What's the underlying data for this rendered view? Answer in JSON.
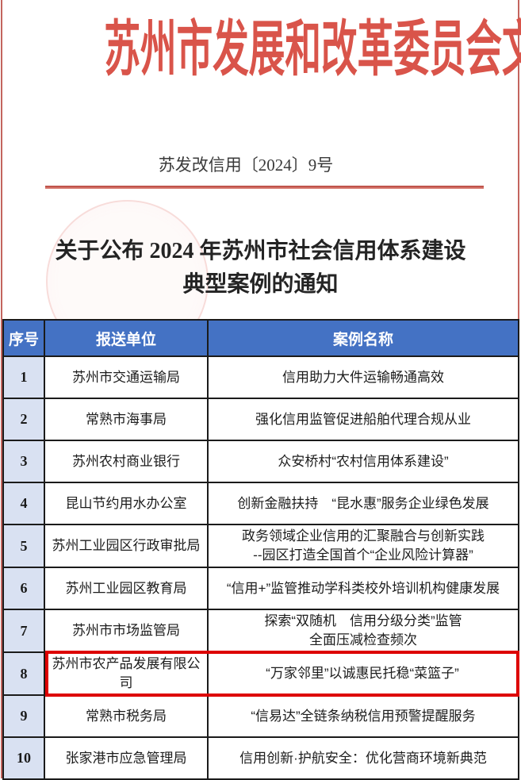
{
  "page": {
    "header_title": "苏州市发展和改革委员会文件",
    "doc_number": "苏发改信用〔2024〕9号",
    "notice_title_line1": "关于公布 2024 年苏州市社会信用体系建设",
    "notice_title_line2": "典型案例的通知"
  },
  "colors": {
    "header_red": "#d9544a",
    "rule_red": "#b94a42",
    "table_header_blue": "#4472c4",
    "seq_col_bg": "#d9e1f2",
    "highlight_red": "#dd0000"
  },
  "table": {
    "columns": [
      "序号",
      "报送单位",
      "案例名称"
    ],
    "rows": [
      {
        "seq": "1",
        "unit": "苏州市交通运输局",
        "case": "信用助力大件运输畅通高效",
        "highlighted": false
      },
      {
        "seq": "2",
        "unit": "常熟市海事局",
        "case": "强化信用监管促进船舶代理合规从业",
        "highlighted": false
      },
      {
        "seq": "3",
        "unit": "苏州农村商业银行",
        "case": "众安桥村“农村信用体系建设”",
        "highlighted": false
      },
      {
        "seq": "4",
        "unit": "昆山节约用水办公室",
        "case": "创新金融扶持　“昆水惠”服务企业绿色发展",
        "highlighted": false
      },
      {
        "seq": "5",
        "unit": "苏州工业园区行政审批局",
        "case": "政务领域企业信用的汇聚融合与创新实践\n--园区打造全国首个“企业风险计算器”",
        "highlighted": false
      },
      {
        "seq": "6",
        "unit": "苏州工业园区教育局",
        "case": "“信用+”监管推动学科类校外培训机构健康发展",
        "highlighted": false
      },
      {
        "seq": "7",
        "unit": "苏州市市场监管局",
        "case": "探索“双随机　信用分级分类”监管\n全面压减检查频次",
        "highlighted": false
      },
      {
        "seq": "8",
        "unit": "苏州市农产品发展有限公司",
        "case": "“万家邻里”以诚惠民托稳“菜篮子”",
        "highlighted": true
      },
      {
        "seq": "9",
        "unit": "常熟市税务局",
        "case": "“信易达”全链条纳税信用预警提醒服务",
        "highlighted": false
      },
      {
        "seq": "10",
        "unit": "张家港市应急管理局",
        "case": "信用创新·护航安全：优化营商环境新典范",
        "highlighted": false
      }
    ]
  }
}
